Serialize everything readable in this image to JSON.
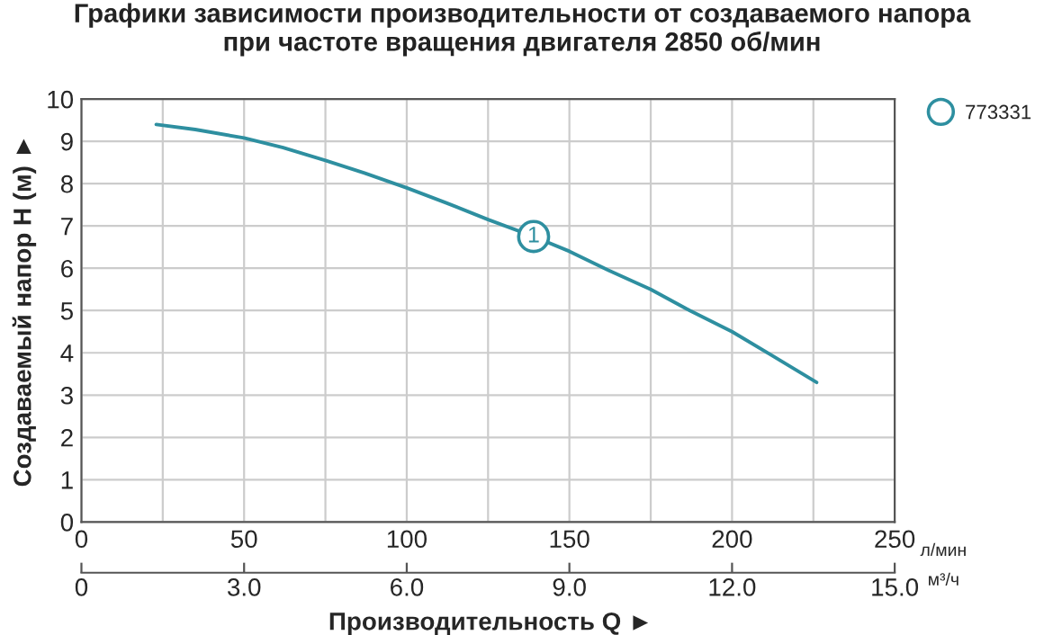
{
  "chart_data": {
    "type": "line",
    "title": "Графики зависимости производительности от создаваемого напора\nпри частоте вращения двигателя 2850 об/мин",
    "xlabel": "л/мин",
    "ylabel": "Создаваемый напор H (м) ►",
    "x2label": "м³/ч",
    "series": [
      {
        "name": "773331",
        "color": "#2e8fa0",
        "x": [
          23,
          35,
          50,
          62,
          75,
          87,
          100,
          112,
          125,
          139,
          150,
          162,
          175,
          187,
          200,
          212,
          226
        ],
        "values": [
          9.4,
          9.28,
          9.08,
          8.85,
          8.55,
          8.25,
          7.9,
          7.55,
          7.15,
          6.75,
          6.4,
          5.95,
          5.5,
          5.0,
          4.5,
          3.95,
          3.3
        ]
      }
    ],
    "annotations": [
      {
        "text": "1",
        "x": 139,
        "y": 6.75
      },
      "Производительность Q ►"
    ],
    "xlim": [
      0,
      250
    ],
    "xticks": [
      0,
      50,
      100,
      150,
      200,
      250
    ],
    "x2lim": [
      0,
      15
    ],
    "x2ticks": [
      0,
      {
        "value": 3,
        "label": "3.0"
      },
      {
        "value": 6,
        "label": "6.0"
      },
      {
        "value": 9,
        "label": "9.0"
      },
      {
        "value": 12,
        "label": "12.0"
      },
      {
        "value": 15,
        "label": "15.0"
      }
    ],
    "ylim": [
      0,
      10
    ],
    "yticks": [
      0,
      1,
      2,
      3,
      4,
      5,
      6,
      7,
      8,
      9,
      10
    ],
    "grid": true,
    "legend": "top right",
    "marker": "none",
    "line_style": "solid"
  }
}
